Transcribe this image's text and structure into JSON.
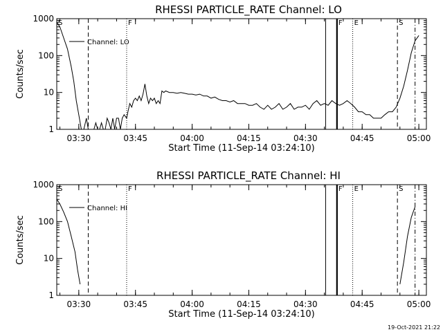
{
  "chart_data": [
    {
      "type": "line",
      "title": "RHESSI PARTICLE_RATE Channel: LO",
      "xlabel": "Start Time (11-Sep-14 03:24:10)",
      "ylabel": "Counts/sec",
      "yscale": "log",
      "ylim": [
        1,
        1000
      ],
      "xlim": [
        "03:24:10",
        "05:02:00"
      ],
      "x_ticks": [
        "03:30",
        "03:45",
        "04:00",
        "04:15",
        "04:30",
        "04:45",
        "05:00"
      ],
      "y_ticks": [
        "1",
        "10",
        "100",
        "1000"
      ],
      "legend": "Channel: LO",
      "legend_position": "top-left",
      "event_markers": [
        {
          "label": "S",
          "time": "03:24:10",
          "style": "dashed"
        },
        {
          "label": "",
          "time": "03:32:30",
          "style": "dashed"
        },
        {
          "label": "F",
          "time": "03:42:40",
          "style": "dotted"
        },
        {
          "label": "",
          "time": "04:35:20",
          "style": "solid"
        },
        {
          "label": "F",
          "time": "04:38:20",
          "style": "solid-bold"
        },
        {
          "label": "E",
          "time": "04:42:30",
          "style": "dotted"
        },
        {
          "label": "S",
          "time": "04:54:20",
          "style": "dashed"
        },
        {
          "label": "",
          "time": "04:59:00",
          "style": "dash-dot"
        }
      ],
      "series": [
        {
          "name": "Channel: LO",
          "segments": [
            [
              [
                "03:24:10",
                800
              ],
              [
                "03:25:00",
                600
              ],
              [
                "03:26:00",
                300
              ],
              [
                "03:27:00",
                150
              ],
              [
                "03:28:00",
                50
              ],
              [
                "03:28:40",
                20
              ],
              [
                "03:29:20",
                6
              ],
              [
                "03:30:00",
                2.5
              ],
              [
                "03:30:40",
                1
              ],
              [
                "03:31:20",
                1
              ],
              [
                "03:32:00",
                2
              ],
              [
                "03:32:30",
                1
              ],
              [
                "03:33:00",
                1
              ],
              [
                "03:33:30",
                1
              ],
              [
                "03:34:00",
                1
              ],
              [
                "03:34:30",
                1.5
              ],
              [
                "03:35:00",
                1
              ],
              [
                "03:35:30",
                1
              ],
              [
                "03:36:00",
                1.5
              ],
              [
                "03:36:30",
                1
              ],
              [
                "03:37:00",
                1
              ],
              [
                "03:37:30",
                2
              ],
              [
                "03:38:00",
                1.5
              ],
              [
                "03:38:30",
                1
              ],
              [
                "03:39:00",
                2
              ],
              [
                "03:39:30",
                1
              ],
              [
                "03:40:00",
                2
              ],
              [
                "03:40:30",
                2
              ],
              [
                "03:41:00",
                1
              ],
              [
                "03:41:30",
                2
              ],
              [
                "03:42:00",
                2.5
              ],
              [
                "03:42:40",
                2
              ],
              [
                "03:43:00",
                3
              ],
              [
                "03:43:30",
                5
              ],
              [
                "03:44:00",
                4
              ],
              [
                "03:44:30",
                6
              ],
              [
                "03:45:00",
                7
              ],
              [
                "03:45:30",
                6
              ],
              [
                "03:46:00",
                8
              ],
              [
                "03:46:30",
                6
              ],
              [
                "03:47:00",
                9
              ],
              [
                "03:47:30",
                17
              ],
              [
                "03:48:00",
                8
              ],
              [
                "03:48:30",
                5
              ],
              [
                "03:49:00",
                7
              ],
              [
                "03:49:30",
                6
              ],
              [
                "03:50:00",
                7
              ],
              [
                "03:50:30",
                5
              ],
              [
                "03:51:00",
                6
              ],
              [
                "03:51:30",
                5
              ],
              [
                "03:52:00",
                11
              ],
              [
                "03:52:30",
                10
              ],
              [
                "03:53:00",
                11
              ],
              [
                "03:54:00",
                10
              ],
              [
                "03:55:00",
                10
              ],
              [
                "03:56:00",
                9.5
              ],
              [
                "03:57:00",
                10
              ],
              [
                "03:58:00",
                9.5
              ],
              [
                "03:59:00",
                9
              ],
              [
                "04:00:00",
                9
              ],
              [
                "04:01:00",
                8.5
              ],
              [
                "04:02:00",
                9
              ],
              [
                "04:03:00",
                8
              ],
              [
                "04:04:00",
                8
              ],
              [
                "04:05:00",
                7
              ],
              [
                "04:06:00",
                7.5
              ],
              [
                "04:07:00",
                6.5
              ],
              [
                "04:08:00",
                6
              ],
              [
                "04:09:00",
                6
              ],
              [
                "04:10:00",
                5.5
              ],
              [
                "04:11:00",
                6
              ],
              [
                "04:12:00",
                5
              ],
              [
                "04:13:00",
                5
              ],
              [
                "04:14:00",
                5
              ],
              [
                "04:15:00",
                4.5
              ],
              [
                "04:16:00",
                4.5
              ],
              [
                "04:17:00",
                5
              ],
              [
                "04:18:00",
                4
              ],
              [
                "04:19:00",
                3.5
              ],
              [
                "04:20:00",
                4.5
              ],
              [
                "04:21:00",
                3.5
              ],
              [
                "04:22:00",
                4
              ],
              [
                "04:23:00",
                5
              ],
              [
                "04:24:00",
                3.5
              ],
              [
                "04:25:00",
                4
              ],
              [
                "04:26:00",
                5
              ],
              [
                "04:27:00",
                3.5
              ],
              [
                "04:28:00",
                4
              ],
              [
                "04:29:00",
                4
              ],
              [
                "04:30:00",
                4.5
              ],
              [
                "04:31:00",
                3.5
              ],
              [
                "04:32:00",
                5
              ],
              [
                "04:33:00",
                6
              ],
              [
                "04:34:00",
                4.5
              ],
              [
                "04:35:00",
                5
              ],
              [
                "04:36:00",
                4.5
              ],
              [
                "04:37:00",
                6
              ],
              [
                "04:38:00",
                5
              ],
              [
                "04:39:00",
                4.5
              ],
              [
                "04:40:00",
                5
              ],
              [
                "04:41:00",
                6
              ],
              [
                "04:42:00",
                5
              ],
              [
                "04:43:00",
                4
              ],
              [
                "04:44:00",
                3
              ],
              [
                "04:45:00",
                3
              ],
              [
                "04:46:00",
                2.5
              ],
              [
                "04:47:00",
                2.5
              ],
              [
                "04:48:00",
                2
              ],
              [
                "04:49:00",
                2
              ],
              [
                "04:50:00",
                2
              ],
              [
                "04:51:00",
                2.5
              ],
              [
                "04:52:00",
                3
              ],
              [
                "04:53:00",
                3
              ],
              [
                "04:54:00",
                4
              ],
              [
                "04:55:00",
                7
              ],
              [
                "04:56:00",
                15
              ],
              [
                "04:57:00",
                40
              ],
              [
                "04:58:00",
                120
              ],
              [
                "04:59:00",
                250
              ],
              [
                "05:00:00",
                350
              ]
            ]
          ]
        }
      ]
    },
    {
      "type": "line",
      "title": "RHESSI PARTICLE_RATE Channel: HI",
      "xlabel": "Start Time (11-Sep-14 03:24:10)",
      "ylabel": "Counts/sec",
      "yscale": "log",
      "ylim": [
        1,
        1000
      ],
      "xlim": [
        "03:24:10",
        "05:02:00"
      ],
      "x_ticks": [
        "03:30",
        "03:45",
        "04:00",
        "04:15",
        "04:30",
        "04:45",
        "05:00"
      ],
      "y_ticks": [
        "1",
        "10",
        "100",
        "1000"
      ],
      "legend": "Channel: HI",
      "legend_position": "top-left",
      "event_markers": [
        {
          "label": "S",
          "time": "03:24:10",
          "style": "dashed"
        },
        {
          "label": "",
          "time": "03:32:30",
          "style": "dashed"
        },
        {
          "label": "F",
          "time": "03:42:40",
          "style": "dotted"
        },
        {
          "label": "",
          "time": "04:35:20",
          "style": "solid"
        },
        {
          "label": "F",
          "time": "04:38:20",
          "style": "solid-bold"
        },
        {
          "label": "E",
          "time": "04:42:30",
          "style": "dotted"
        },
        {
          "label": "S",
          "time": "04:54:20",
          "style": "dashed"
        },
        {
          "label": "",
          "time": "04:59:00",
          "style": "dash-dot"
        }
      ],
      "series": [
        {
          "name": "Channel: HI",
          "segments": [
            [
              [
                "03:24:10",
                400
              ],
              [
                "03:25:00",
                300
              ],
              [
                "03:26:00",
                180
              ],
              [
                "03:27:00",
                100
              ],
              [
                "03:28:00",
                40
              ],
              [
                "03:29:00",
                15
              ],
              [
                "03:29:40",
                5
              ],
              [
                "03:30:20",
                2
              ]
            ],
            [
              [
                "04:55:00",
                2
              ],
              [
                "04:56:00",
                8
              ],
              [
                "04:57:00",
                40
              ],
              [
                "04:58:00",
                130
              ],
              [
                "04:59:00",
                250
              ]
            ]
          ]
        }
      ]
    }
  ],
  "timestamp": "19-Oct-2021 21:22"
}
